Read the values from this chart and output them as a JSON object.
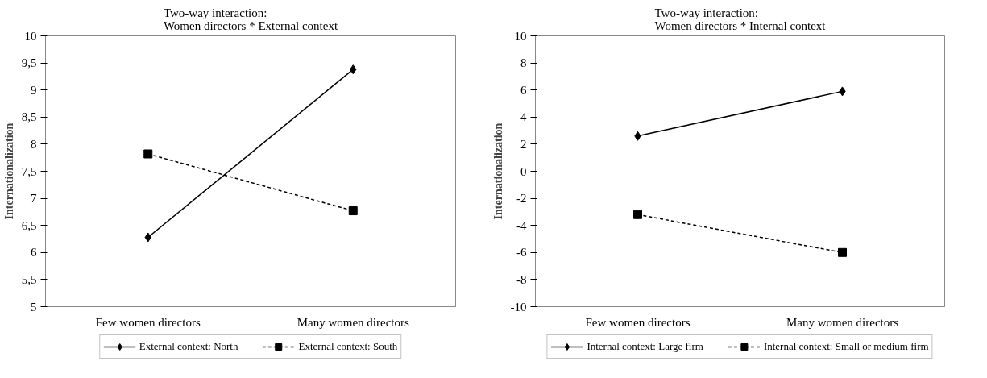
{
  "chart_data": [
    {
      "type": "line",
      "title": "Two-way interaction:\nWomen directors * External context",
      "ylabel": "Internationalization",
      "categories": [
        "Few women directors",
        "Many women directors"
      ],
      "series": [
        {
          "name": "External context: North",
          "color": "#000000",
          "values": [
            6.28,
            9.38
          ],
          "marker": "diamond",
          "line_style": "solid"
        },
        {
          "name": "External context: South",
          "color": "#000000",
          "values": [
            7.82,
            6.77
          ],
          "marker": "square",
          "line_style": "dashed"
        }
      ],
      "ylim": [
        5,
        10
      ],
      "yticks": [
        5,
        {
          "value": 5.5,
          "label": "5,5"
        },
        6,
        {
          "value": 6.5,
          "label": "6,5"
        },
        7,
        {
          "value": 7.5,
          "label": "7,5"
        },
        8,
        {
          "value": 8.5,
          "label": "8,5"
        },
        9,
        {
          "value": 9.5,
          "label": "9,5"
        },
        10
      ],
      "grid": false,
      "legend": "bottom"
    },
    {
      "type": "line",
      "title": "Two-way interaction:\nWomen directors * Internal context",
      "ylabel": "Internationalization",
      "categories": [
        "Few women directors",
        "Many women directors"
      ],
      "series": [
        {
          "name": "Internal context: Large firm",
          "color": "#000000",
          "values": [
            2.6,
            5.9
          ],
          "marker": "diamond",
          "line_style": "solid"
        },
        {
          "name": "Internal context: Small or medium firm",
          "color": "#000000",
          "values": [
            -3.2,
            -6.0
          ],
          "marker": "square",
          "line_style": "dashed"
        }
      ],
      "ylim": [
        -10,
        10
      ],
      "yticks": [
        -10,
        -8,
        -6,
        -4,
        -2,
        0,
        2,
        4,
        6,
        8,
        10
      ],
      "grid": false,
      "legend": "bottom"
    }
  ]
}
